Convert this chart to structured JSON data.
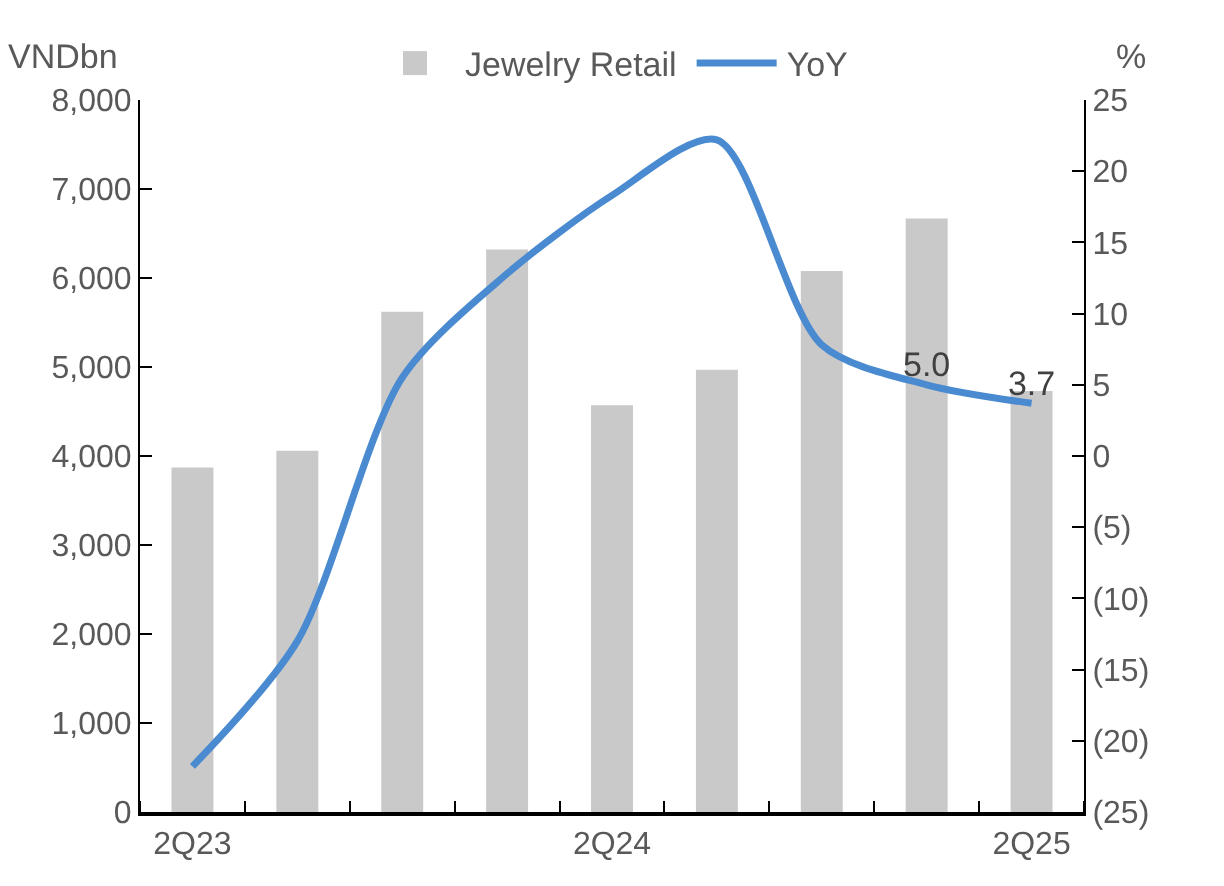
{
  "chart_data": {
    "type": "bar",
    "categories": [
      "2Q23",
      null,
      null,
      null,
      "2Q24",
      null,
      null,
      null,
      "2Q25"
    ],
    "series": [
      {
        "name": "Jewelry Retail",
        "color": "#c9c9c9",
        "values": [
          3870,
          4060,
          5620,
          6320,
          4570,
          4970,
          6080,
          6670,
          4730
        ]
      },
      {
        "name": "YoY",
        "type": "line",
        "axis": "y2",
        "color": "#4a8ad0",
        "values": [
          -21.8,
          -13.0,
          5.5,
          12.8,
          18.3,
          22.2,
          7.8,
          5.0,
          3.7
        ],
        "value_labels": [
          null,
          null,
          null,
          null,
          null,
          null,
          null,
          "5.0",
          "3.7"
        ]
      }
    ],
    "ylabel": "VNDbn",
    "y2label": "%",
    "ylim": [
      0,
      8000
    ],
    "yticks": [
      0,
      {
        "value": 1000,
        "label": "1,000"
      },
      {
        "value": 2000,
        "label": "2,000"
      },
      {
        "value": 3000,
        "label": "3,000"
      },
      {
        "value": 4000,
        "label": "4,000"
      },
      {
        "value": 5000,
        "label": "5,000"
      },
      {
        "value": 6000,
        "label": "6,000"
      },
      {
        "value": 7000,
        "label": "7,000"
      },
      {
        "value": 8000,
        "label": "8,000"
      }
    ],
    "y2lim": [
      -25,
      25
    ],
    "y2ticks": [
      {
        "value": -25,
        "label": "(25)"
      },
      {
        "value": -20,
        "label": "(20)"
      },
      {
        "value": -15,
        "label": "(15)"
      },
      {
        "value": -10,
        "label": "(10)"
      },
      {
        "value": -5,
        "label": "(5)"
      },
      0,
      5,
      10,
      15,
      20,
      25
    ],
    "legend": "top",
    "marker": "none",
    "line_style": "solid"
  }
}
